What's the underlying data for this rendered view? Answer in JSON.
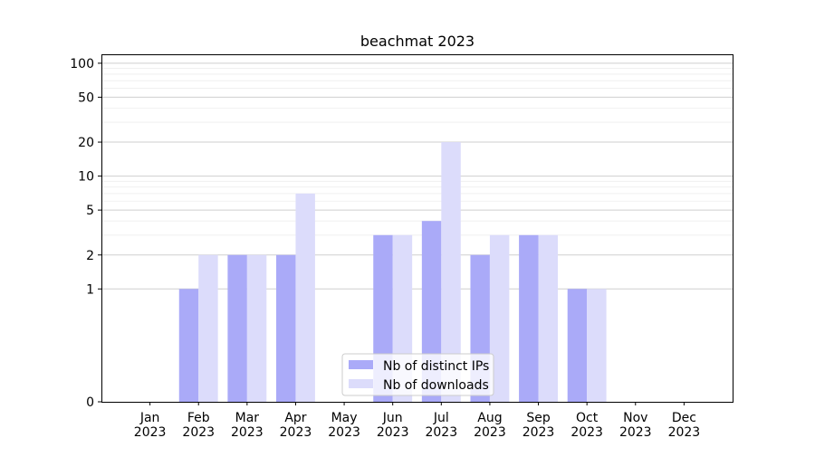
{
  "chart_data": {
    "type": "bar",
    "title": "beachmat 2023",
    "xlabel": "",
    "ylabel": "",
    "yscale": "symlog",
    "ylim": [
      0,
      120
    ],
    "yticks": [
      0,
      1,
      2,
      5,
      10,
      20,
      50,
      100
    ],
    "grid": true,
    "legend_position": "bottom-center",
    "categories": [
      "Jan\n2023",
      "Feb\n2023",
      "Mar\n2023",
      "Apr\n2023",
      "May\n2023",
      "Jun\n2023",
      "Jul\n2023",
      "Aug\n2023",
      "Sep\n2023",
      "Oct\n2023",
      "Nov\n2023",
      "Dec\n2023"
    ],
    "series": [
      {
        "name": "Nb of distinct IPs",
        "color": "#aaaaf8",
        "values": [
          0,
          1,
          2,
          2,
          0,
          3,
          4,
          2,
          3,
          1,
          0,
          0
        ]
      },
      {
        "name": "Nb of downloads",
        "color": "#dcdcfb",
        "values": [
          0,
          2,
          2,
          7,
          0,
          3,
          20,
          3,
          3,
          1,
          0,
          0
        ]
      }
    ]
  }
}
